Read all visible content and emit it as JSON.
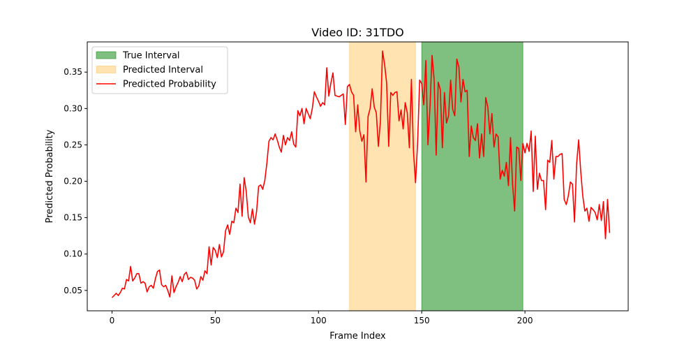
{
  "chart_data": {
    "type": "line",
    "title": "Video ID: 31TDO",
    "xlabel": "Frame Index",
    "ylabel": "Predicted Probability",
    "xlim": [
      -12,
      250
    ],
    "ylim": [
      0.022,
      0.3915
    ],
    "xticks": [
      0,
      50,
      100,
      150,
      200
    ],
    "yticks": [
      0.05,
      0.1,
      0.15,
      0.2,
      0.25,
      0.3,
      0.35
    ],
    "xtick_labels": [
      "0",
      "50",
      "100",
      "150",
      "200"
    ],
    "ytick_labels": [
      "0.05",
      "0.10",
      "0.15",
      "0.20",
      "0.25",
      "0.30",
      "0.35"
    ],
    "grid": false,
    "legend_position": "top-left",
    "intervals": [
      {
        "name": "True Interval",
        "start": 150,
        "end": 199,
        "color": "#008000",
        "opacity": 0.5
      },
      {
        "name": "Predicted Interval",
        "start": 115,
        "end": 147,
        "color": "#ffa500",
        "opacity": 0.3
      }
    ],
    "series": [
      {
        "name": "Predicted Probability",
        "color": "#ff0000",
        "x_start": 0,
        "values": [
          0.04,
          0.043,
          0.046,
          0.043,
          0.047,
          0.053,
          0.052,
          0.065,
          0.063,
          0.083,
          0.063,
          0.067,
          0.073,
          0.073,
          0.06,
          0.062,
          0.06,
          0.048,
          0.055,
          0.057,
          0.053,
          0.066,
          0.076,
          0.078,
          0.058,
          0.055,
          0.057,
          0.05,
          0.041,
          0.07,
          0.047,
          0.055,
          0.061,
          0.069,
          0.062,
          0.072,
          0.075,
          0.065,
          0.068,
          0.067,
          0.064,
          0.052,
          0.056,
          0.069,
          0.064,
          0.077,
          0.073,
          0.11,
          0.085,
          0.109,
          0.105,
          0.095,
          0.113,
          0.096,
          0.103,
          0.132,
          0.14,
          0.127,
          0.145,
          0.143,
          0.163,
          0.157,
          0.196,
          0.152,
          0.205,
          0.186,
          0.151,
          0.143,
          0.162,
          0.141,
          0.158,
          0.193,
          0.195,
          0.189,
          0.201,
          0.225,
          0.255,
          0.26,
          0.257,
          0.265,
          0.257,
          0.247,
          0.24,
          0.263,
          0.25,
          0.26,
          0.256,
          0.268,
          0.251,
          0.247,
          0.297,
          0.29,
          0.3,
          0.279,
          0.3,
          0.293,
          0.286,
          0.3,
          0.323,
          0.316,
          0.31,
          0.303,
          0.308,
          0.305,
          0.356,
          0.317,
          0.335,
          0.349,
          0.318,
          0.317,
          0.316,
          0.318,
          0.32,
          0.278,
          0.33,
          0.333,
          0.323,
          0.318,
          0.268,
          0.305,
          0.269,
          0.255,
          0.264,
          0.199,
          0.289,
          0.3,
          0.327,
          0.302,
          0.294,
          0.248,
          0.283,
          0.379,
          0.361,
          0.335,
          0.248,
          0.322,
          0.318,
          0.322,
          0.323,
          0.283,
          0.298,
          0.272,
          0.308,
          0.294,
          0.246,
          0.34,
          0.241,
          0.198,
          0.253,
          0.339,
          0.334,
          0.305,
          0.366,
          0.25,
          0.302,
          0.373,
          0.34,
          0.236,
          0.336,
          0.326,
          0.246,
          0.322,
          0.28,
          0.29,
          0.339,
          0.299,
          0.29,
          0.368,
          0.357,
          0.309,
          0.34,
          0.323,
          0.325,
          0.234,
          0.276,
          0.26,
          0.256,
          0.279,
          0.232,
          0.265,
          0.234,
          0.315,
          0.302,
          0.265,
          0.293,
          0.247,
          0.265,
          0.261,
          0.203,
          0.215,
          0.207,
          0.226,
          0.194,
          0.26,
          0.196,
          0.159,
          0.247,
          0.245,
          0.201,
          0.252,
          0.239,
          0.252,
          0.241,
          0.269,
          0.186,
          0.262,
          0.189,
          0.211,
          0.201,
          0.201,
          0.161,
          0.229,
          0.226,
          0.256,
          0.203,
          0.234,
          0.234,
          0.237,
          0.238,
          0.175,
          0.168,
          0.18,
          0.199,
          0.196,
          0.144,
          0.223,
          0.257,
          0.214,
          0.18,
          0.159,
          0.163,
          0.145,
          0.164,
          0.161,
          0.157,
          0.147,
          0.168,
          0.146,
          0.172,
          0.121,
          0.175,
          0.129
        ]
      }
    ]
  }
}
